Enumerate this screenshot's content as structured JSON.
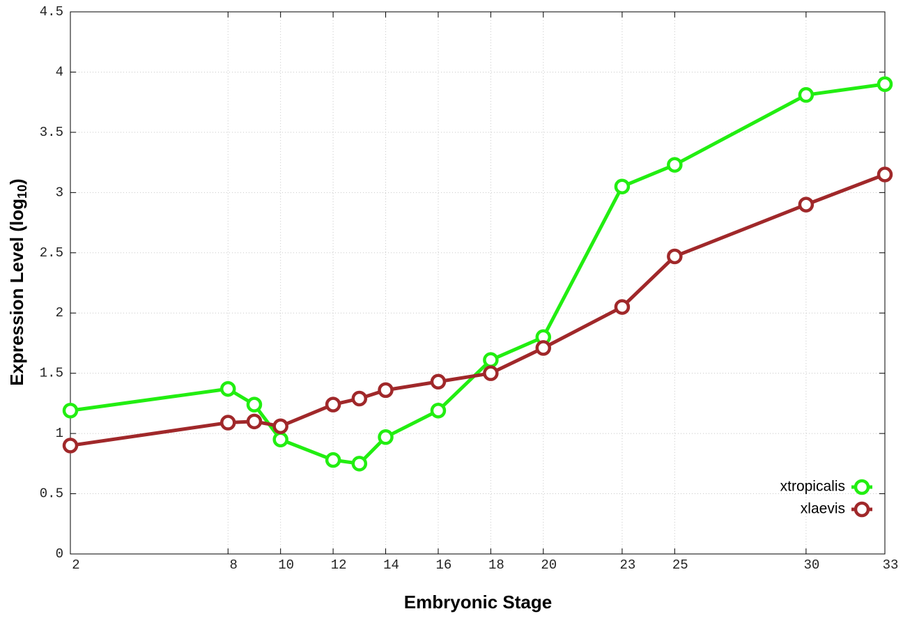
{
  "chart_data": {
    "type": "line",
    "x_label": "Embryonic Stage",
    "y_label_parts": [
      "Expression Level (log",
      "10",
      ")"
    ],
    "x": [
      2,
      8,
      9,
      10,
      12,
      13,
      14,
      16,
      18,
      20,
      23,
      25,
      30,
      33
    ],
    "series": [
      {
        "name": "xtropicalis",
        "color": "#22ee11",
        "values": [
          1.19,
          1.37,
          1.24,
          0.95,
          0.78,
          0.75,
          0.97,
          1.19,
          1.61,
          1.8,
          3.05,
          3.23,
          3.81,
          3.9
        ]
      },
      {
        "name": "xlaevis",
        "color": "#a0282a",
        "values": [
          0.9,
          1.09,
          1.1,
          1.06,
          1.24,
          1.29,
          1.36,
          1.43,
          1.5,
          1.71,
          2.05,
          2.47,
          2.9,
          3.15
        ]
      }
    ],
    "xlim": [
      2,
      33
    ],
    "xticks": [
      2,
      8,
      10,
      12,
      14,
      16,
      18,
      20,
      23,
      25,
      30,
      33
    ],
    "ylim": [
      0,
      4.5
    ],
    "yticks": [
      0,
      0.5,
      1,
      1.5,
      2,
      2.5,
      3,
      3.5,
      4,
      4.5
    ],
    "grid": true,
    "legend": "lower right"
  }
}
